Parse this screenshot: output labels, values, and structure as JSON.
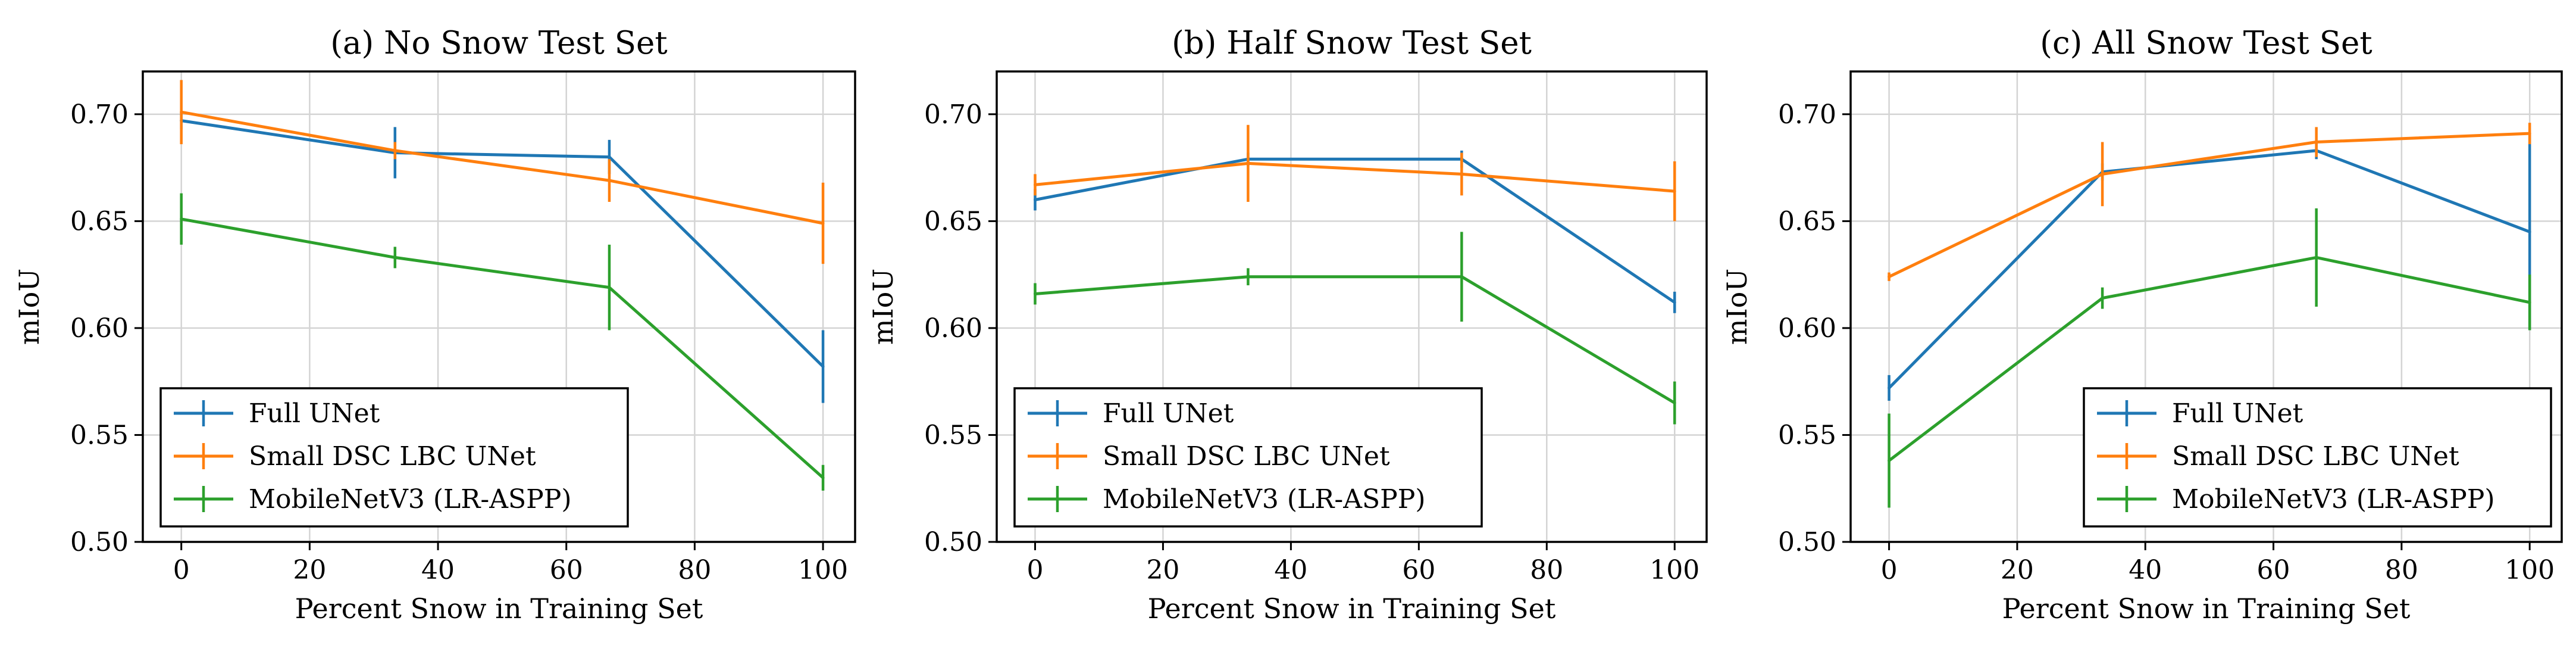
{
  "chart_data": [
    {
      "type": "line",
      "title": "(a) No Snow Test Set",
      "xlabel": "Percent Snow in Training Set",
      "ylabel": "mIoU",
      "xlim": [
        -6,
        105
      ],
      "ylim": [
        0.5,
        0.72
      ],
      "xticks": [
        0,
        20,
        40,
        60,
        80,
        100
      ],
      "xtick_labels": [
        "0",
        "20",
        "40",
        "60",
        "80",
        "100"
      ],
      "yticks": [
        0.5,
        0.55,
        0.6,
        0.65,
        0.7
      ],
      "ytick_labels": [
        "0.50",
        "0.55",
        "0.60",
        "0.65",
        "0.70"
      ],
      "grid": true,
      "legend_position": "lower-left",
      "x": [
        0,
        33.3,
        66.7,
        100
      ],
      "series": [
        {
          "name": "Full UNet",
          "color": "#1f77b4",
          "values": [
            0.697,
            0.682,
            0.68,
            0.582
          ],
          "errors": [
            0.004,
            0.012,
            0.008,
            0.017
          ]
        },
        {
          "name": "Small DSC LBC UNet",
          "color": "#ff7f0e",
          "values": [
            0.701,
            0.683,
            0.669,
            0.649
          ],
          "errors": [
            0.015,
            0.004,
            0.01,
            0.019
          ]
        },
        {
          "name": "MobileNetV3 (LR-ASPP)",
          "color": "#2ca02c",
          "values": [
            0.651,
            0.633,
            0.619,
            0.53
          ],
          "errors": [
            0.012,
            0.005,
            0.02,
            0.006
          ]
        }
      ]
    },
    {
      "type": "line",
      "title": "(b) Half Snow Test Set",
      "xlabel": "Percent Snow in Training Set",
      "ylabel": "mIoU",
      "xlim": [
        -6,
        105
      ],
      "ylim": [
        0.5,
        0.72
      ],
      "xticks": [
        0,
        20,
        40,
        60,
        80,
        100
      ],
      "xtick_labels": [
        "0",
        "20",
        "40",
        "60",
        "80",
        "100"
      ],
      "yticks": [
        0.5,
        0.55,
        0.6,
        0.65,
        0.7
      ],
      "ytick_labels": [
        "0.50",
        "0.55",
        "0.60",
        "0.65",
        "0.70"
      ],
      "grid": true,
      "legend_position": "lower-left",
      "x": [
        0,
        33.3,
        66.7,
        100
      ],
      "series": [
        {
          "name": "Full UNet",
          "color": "#1f77b4",
          "values": [
            0.66,
            0.679,
            0.679,
            0.612
          ],
          "errors": [
            0.005,
            0.003,
            0.004,
            0.005
          ]
        },
        {
          "name": "Small DSC LBC UNet",
          "color": "#ff7f0e",
          "values": [
            0.667,
            0.677,
            0.672,
            0.664
          ],
          "errors": [
            0.005,
            0.018,
            0.01,
            0.014
          ]
        },
        {
          "name": "MobileNetV3 (LR-ASPP)",
          "color": "#2ca02c",
          "values": [
            0.616,
            0.624,
            0.624,
            0.565
          ],
          "errors": [
            0.005,
            0.004,
            0.021,
            0.01
          ]
        }
      ]
    },
    {
      "type": "line",
      "title": "(c) All Snow Test Set",
      "xlabel": "Percent Snow in Training Set",
      "ylabel": "mIoU",
      "xlim": [
        -6,
        105
      ],
      "ylim": [
        0.5,
        0.72
      ],
      "xticks": [
        0,
        20,
        40,
        60,
        80,
        100
      ],
      "xtick_labels": [
        "0",
        "20",
        "40",
        "60",
        "80",
        "100"
      ],
      "yticks": [
        0.5,
        0.55,
        0.6,
        0.65,
        0.7
      ],
      "ytick_labels": [
        "0.50",
        "0.55",
        "0.60",
        "0.65",
        "0.70"
      ],
      "grid": true,
      "legend_position": "lower-right",
      "x": [
        0,
        33.3,
        66.7,
        100
      ],
      "series": [
        {
          "name": "Full UNet",
          "color": "#1f77b4",
          "values": [
            0.572,
            0.673,
            0.683,
            0.645
          ],
          "errors": [
            0.006,
            0.004,
            0.004,
            0.046
          ]
        },
        {
          "name": "Small DSC LBC UNet",
          "color": "#ff7f0e",
          "values": [
            0.624,
            0.672,
            0.687,
            0.691
          ],
          "errors": [
            0.002,
            0.015,
            0.007,
            0.005
          ]
        },
        {
          "name": "MobileNetV3 (LR-ASPP)",
          "color": "#2ca02c",
          "values": [
            0.538,
            0.614,
            0.633,
            0.612
          ],
          "errors": [
            0.022,
            0.005,
            0.023,
            0.013
          ]
        }
      ]
    }
  ]
}
